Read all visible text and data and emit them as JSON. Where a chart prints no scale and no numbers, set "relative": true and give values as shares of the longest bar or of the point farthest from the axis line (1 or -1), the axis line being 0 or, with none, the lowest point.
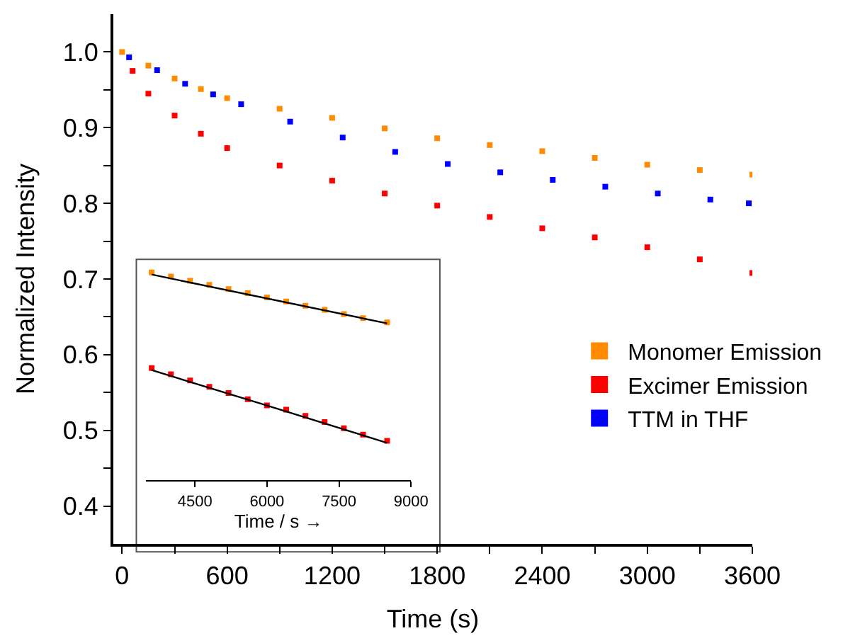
{
  "chart_data": [
    {
      "type": "scatter",
      "xlabel": "Time (s)",
      "ylabel": "Normalized Intensity",
      "xlim": [
        -50,
        3600
      ],
      "ylim": [
        0.35,
        1.05
      ],
      "xticks": [
        0,
        {
          "value": 300,
          "label": null
        },
        600,
        {
          "value": 900,
          "label": null
        },
        1200,
        {
          "value": 1500,
          "label": null
        },
        1800,
        {
          "value": 2100,
          "label": null
        },
        2400,
        {
          "value": 2700,
          "label": null
        },
        3000,
        {
          "value": 3300,
          "label": null
        },
        3600
      ],
      "yticks": [
        0.4,
        {
          "value": 0.45,
          "label": null
        },
        0.5,
        {
          "value": 0.55,
          "label": null
        },
        0.6,
        {
          "value": 0.65,
          "label": null
        },
        0.7,
        {
          "value": 0.75,
          "label": null
        },
        0.8,
        {
          "value": 0.85,
          "label": null
        },
        0.9,
        {
          "value": 0.95,
          "label": null
        },
        {
          "value": 1.0,
          "label": "1.0"
        }
      ],
      "x": [
        0,
        150,
        300,
        450,
        600,
        900,
        1200,
        1500,
        1800,
        2100,
        2400,
        2700,
        3000,
        3300,
        3600
      ],
      "series": [
        {
          "name": "Monomer Emission",
          "color": "#ff8c00",
          "values": [
            1.0,
            0.982,
            0.965,
            0.951,
            0.939,
            0.925,
            0.913,
            0.899,
            0.886,
            0.877,
            0.869,
            0.86,
            0.851,
            0.844,
            0.838
          ]
        },
        {
          "name": "Excimer Emission",
          "color": "#ff0000",
          "x": [
            60,
            150,
            300,
            450,
            600,
            900,
            1200,
            1500,
            1800,
            2100,
            2400,
            2700,
            3000,
            3300,
            3600
          ],
          "values": [
            0.975,
            0.945,
            0.916,
            0.892,
            0.873,
            0.85,
            0.83,
            0.813,
            0.797,
            0.782,
            0.767,
            0.755,
            0.742,
            0.726,
            0.708
          ]
        },
        {
          "name": "TTM in THF",
          "color": "#0000ff",
          "x": [
            40,
            200,
            360,
            520,
            680,
            960,
            1260,
            1560,
            1860,
            2160,
            2460,
            2760,
            3060,
            3360,
            3580
          ],
          "values": [
            0.993,
            0.976,
            0.958,
            0.944,
            0.931,
            0.908,
            0.887,
            0.868,
            0.852,
            0.841,
            0.831,
            0.822,
            0.813,
            0.805,
            0.8
          ]
        }
      ],
      "marker": "square",
      "legend": "right",
      "grid": false
    },
    {
      "type": "scatter",
      "xlabel": "Time / s →",
      "relative": true,
      "xlim": [
        3480,
        9000
      ],
      "xticks": [
        4500,
        6000,
        7500,
        9000
      ],
      "tick_labels": "x",
      "x": [
        3600,
        4000,
        4400,
        4800,
        5200,
        5600,
        6000,
        6400,
        6800,
        7200,
        7600,
        8000,
        8500
      ],
      "series": [
        {
          "color": "#ff8c00",
          "values": [
            1.0,
            0.98,
            0.96,
            0.94,
            0.92,
            0.9,
            0.88,
            0.86,
            0.84,
            0.82,
            0.8,
            0.78,
            0.76
          ]
        },
        {
          "color": "#ff0000",
          "values": [
            0.54,
            0.51,
            0.48,
            0.45,
            0.42,
            0.39,
            0.36,
            0.34,
            0.31,
            0.28,
            0.25,
            0.22,
            0.19
          ]
        },
        {
          "type": "line",
          "marker": "none",
          "color": "#000000",
          "x": [
            3600,
            8500
          ],
          "values": [
            0.99,
            0.755
          ]
        },
        {
          "type": "line",
          "marker": "none",
          "color": "#000000",
          "x": [
            3600,
            6000,
            8500
          ],
          "values": [
            0.53,
            0.36,
            0.18
          ]
        }
      ],
      "marker": "square",
      "grid": false
    }
  ]
}
